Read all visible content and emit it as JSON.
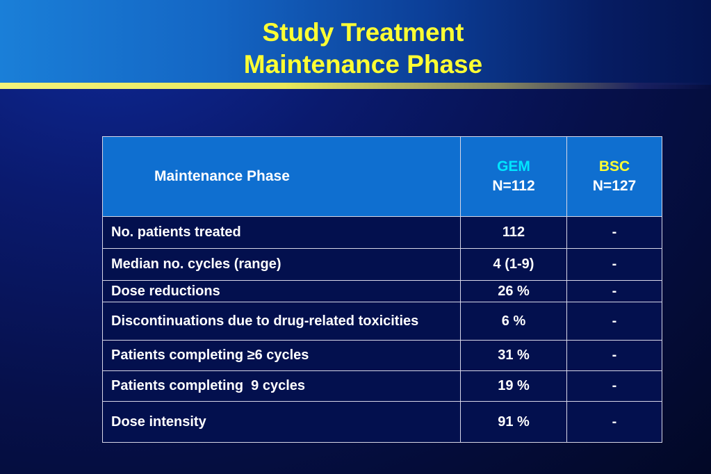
{
  "title": {
    "line1": "Study Treatment",
    "line2": "Maintenance Phase"
  },
  "table": {
    "header": {
      "label": "Maintenance Phase",
      "gem": {
        "name": "GEM",
        "n": "N=112"
      },
      "bsc": {
        "name": "BSC",
        "n": "N=127"
      }
    },
    "rows": [
      {
        "label": "No. patients treated",
        "gem": "112",
        "bsc": "-"
      },
      {
        "label": "Median no. cycles (range)",
        "gem": "4 (1-9)",
        "bsc": "-"
      },
      {
        "label": "Dose reductions",
        "gem": "26 %",
        "bsc": "-"
      },
      {
        "label": "Discontinuations due to drug-related toxicities",
        "gem": "6 %",
        "bsc": "-"
      },
      {
        "label": "Patients completing ≥6 cycles",
        "gem": "31 %",
        "bsc": "-"
      },
      {
        "label": "Patients completing  9 cycles",
        "gem": "19 %",
        "bsc": "-"
      },
      {
        "label": "Dose intensity",
        "gem": "91 %",
        "bsc": "-"
      }
    ]
  },
  "colors": {
    "title": "#ffff33",
    "gem_header": "#00e6ff",
    "bsc_header": "#ffff33",
    "header_cell": "#0f6fd0",
    "body_cell": "#03104e"
  }
}
